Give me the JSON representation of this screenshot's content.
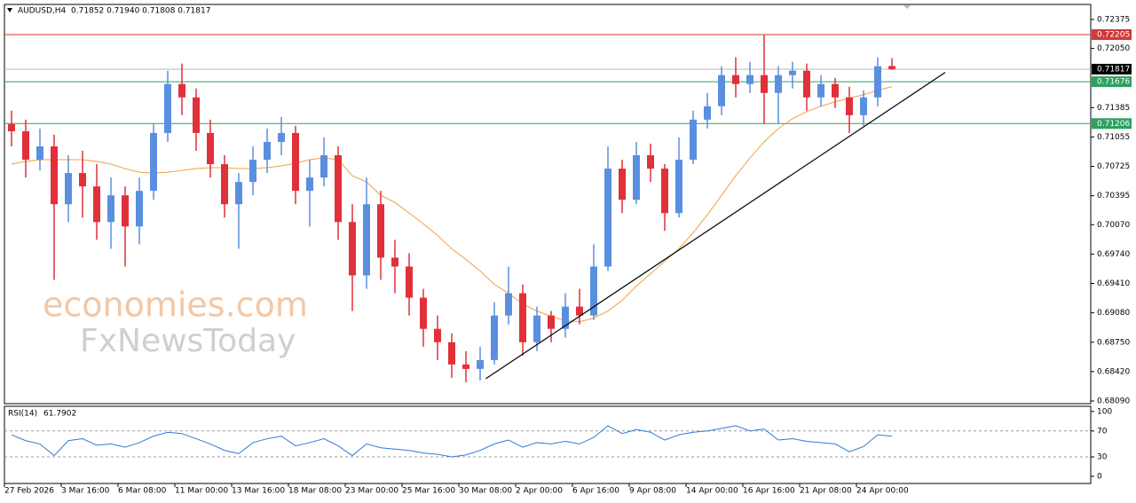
{
  "chart_data": [
    {
      "type": "candlestick",
      "title": "AUDUSD,H4",
      "subtitle": "0.71852 0.71940 0.71808 0.71817",
      "categories": [
        "27 Feb 2026",
        null,
        null,
        null,
        "3 Mar 16:00",
        null,
        null,
        null,
        "6 Mar 08:00",
        null,
        null,
        null,
        "11 Mar 00:00",
        null,
        null,
        null,
        "13 Mar 16:00",
        null,
        null,
        null,
        "18 Mar 08:00",
        null,
        null,
        null,
        "23 Mar 00:00",
        null,
        null,
        null,
        "25 Mar 16:00",
        null,
        null,
        null,
        "30 Mar 08:00",
        null,
        null,
        null,
        "2 Apr 00:00",
        null,
        null,
        null,
        "6 Apr 16:00",
        null,
        null,
        null,
        "9 Apr 08:00",
        null,
        null,
        null,
        "14 Apr 00:00",
        null,
        null,
        null,
        "16 Apr 16:00",
        null,
        null,
        null,
        "21 Apr 08:00",
        null,
        null,
        null,
        "24 Apr 00:00",
        null,
        null
      ],
      "open": [
        0.712,
        0.7112,
        0.708,
        0.7095,
        0.703,
        0.7065,
        0.705,
        0.701,
        0.704,
        0.7005,
        0.7045,
        0.711,
        0.7165,
        0.715,
        0.711,
        0.7075,
        0.703,
        0.7055,
        0.708,
        0.71,
        0.711,
        0.7045,
        0.706,
        0.7085,
        0.701,
        0.695,
        0.703,
        0.697,
        0.696,
        0.6925,
        0.689,
        0.6875,
        0.685,
        0.6845,
        0.6855,
        0.6905,
        0.693,
        0.6875,
        0.6905,
        0.689,
        0.6915,
        0.6905,
        0.696,
        0.707,
        0.7035,
        0.7085,
        0.707,
        0.702,
        0.708,
        0.7125,
        0.714,
        0.7175,
        0.7165,
        0.7175,
        0.7155,
        0.7175,
        0.718,
        0.715,
        0.7165,
        0.715,
        0.713,
        0.715,
        0.71852
      ],
      "high": [
        0.7135,
        0.7125,
        0.7115,
        0.7108,
        0.7085,
        0.709,
        0.7075,
        0.706,
        0.705,
        0.706,
        0.712,
        0.718,
        0.7188,
        0.716,
        0.7125,
        0.7085,
        0.7065,
        0.7095,
        0.7115,
        0.7128,
        0.7118,
        0.708,
        0.7105,
        0.7095,
        0.703,
        0.706,
        0.7045,
        0.699,
        0.6975,
        0.6935,
        0.6905,
        0.6885,
        0.6865,
        0.687,
        0.692,
        0.696,
        0.694,
        0.6915,
        0.691,
        0.693,
        0.6935,
        0.6985,
        0.7095,
        0.708,
        0.71,
        0.7098,
        0.7075,
        0.7105,
        0.7135,
        0.7155,
        0.7185,
        0.7195,
        0.719,
        0.722,
        0.7185,
        0.719,
        0.7188,
        0.7175,
        0.7172,
        0.7162,
        0.7158,
        0.7195,
        0.7194
      ],
      "low": [
        0.7095,
        0.706,
        0.7068,
        0.6945,
        0.701,
        0.7015,
        0.699,
        0.698,
        0.696,
        0.6985,
        0.7035,
        0.71,
        0.713,
        0.709,
        0.706,
        0.7015,
        0.698,
        0.704,
        0.7065,
        0.7085,
        0.703,
        0.7005,
        0.705,
        0.699,
        0.691,
        0.6935,
        0.6945,
        0.693,
        0.6905,
        0.687,
        0.6855,
        0.6835,
        0.683,
        0.6832,
        0.685,
        0.6895,
        0.686,
        0.6865,
        0.6875,
        0.688,
        0.6895,
        0.69,
        0.6955,
        0.702,
        0.703,
        0.7055,
        0.7,
        0.7015,
        0.7075,
        0.7115,
        0.713,
        0.715,
        0.7155,
        0.712,
        0.712,
        0.716,
        0.7135,
        0.714,
        0.7138,
        0.711,
        0.7118,
        0.714,
        0.71808
      ],
      "close": [
        0.7112,
        0.708,
        0.7095,
        0.703,
        0.7065,
        0.705,
        0.701,
        0.704,
        0.7005,
        0.7045,
        0.711,
        0.7165,
        0.715,
        0.711,
        0.7075,
        0.703,
        0.7055,
        0.708,
        0.71,
        0.711,
        0.7045,
        0.706,
        0.7085,
        0.701,
        0.695,
        0.703,
        0.697,
        0.696,
        0.6925,
        0.689,
        0.6875,
        0.685,
        0.6845,
        0.6855,
        0.6905,
        0.693,
        0.6875,
        0.6905,
        0.689,
        0.6915,
        0.6905,
        0.696,
        0.707,
        0.7035,
        0.7085,
        0.707,
        0.702,
        0.708,
        0.7125,
        0.714,
        0.7175,
        0.7165,
        0.7175,
        0.7155,
        0.7175,
        0.718,
        0.715,
        0.7165,
        0.715,
        0.713,
        0.715,
        0.7185,
        0.71817
      ],
      "up_color": "#5a8fe0",
      "down_color": "#e0303a",
      "moving_average": {
        "color": "#f0a040",
        "values": [
          0.7075,
          0.7078,
          0.708,
          0.708,
          0.708,
          0.708,
          0.7078,
          0.7075,
          0.707,
          0.7066,
          0.7065,
          0.7066,
          0.7068,
          0.707,
          0.7071,
          0.7071,
          0.707,
          0.707,
          0.7071,
          0.7073,
          0.7076,
          0.708,
          0.7082,
          0.708,
          0.7062,
          0.7055,
          0.704,
          0.7032,
          0.702,
          0.7008,
          0.6995,
          0.698,
          0.6968,
          0.6955,
          0.694,
          0.693,
          0.6918,
          0.691,
          0.6904,
          0.6899,
          0.6898,
          0.6902,
          0.691,
          0.6922,
          0.6938,
          0.6952,
          0.6966,
          0.698,
          0.6998,
          0.7018,
          0.704,
          0.7062,
          0.7082,
          0.71,
          0.7115,
          0.7126,
          0.7134,
          0.714,
          0.7145,
          0.7149,
          0.7153,
          0.7158,
          0.7162
        ]
      },
      "levels": [
        {
          "value": 0.72205,
          "color": "#d03a3a"
        },
        {
          "value": 0.71676,
          "color": "#2ea060"
        },
        {
          "value": 0.71206,
          "color": "#2ea060"
        },
        {
          "value": 0.71817,
          "color": "#000000"
        }
      ],
      "trendline": {
        "x": [
          33.4,
          65.75
        ],
        "values": [
          0.6834,
          0.7178
        ],
        "color": "#000000"
      },
      "watermark": [
        "economies.com",
        "FxNewsToday"
      ],
      "ylim": [
        0.6806,
        0.72544
      ],
      "yticks": [
        0.72375,
        {
          "value": 0.7205,
          "label": "0.72050"
        },
        0.71385,
        0.71055,
        0.70725,
        0.70395,
        {
          "value": 0.7007,
          "label": "0.70070"
        },
        {
          "value": 0.6974,
          "label": "0.69740"
        },
        {
          "value": 0.6941,
          "label": "0.69410"
        },
        {
          "value": 0.6908,
          "label": "0.69080"
        },
        {
          "value": 0.6875,
          "label": "0.68750"
        },
        {
          "value": 0.6842,
          "label": "0.68420"
        },
        {
          "value": 0.6809,
          "label": "0.68090"
        }
      ]
    },
    {
      "type": "line",
      "title": "RSI(14)",
      "color": "#2f7bd6",
      "values": [
        64,
        55,
        50,
        32,
        55,
        58,
        48,
        50,
        45,
        52,
        62,
        68,
        66,
        58,
        50,
        40,
        35,
        52,
        58,
        62,
        47,
        52,
        58,
        47,
        32,
        50,
        44,
        42,
        40,
        36,
        34,
        30,
        33,
        40,
        50,
        56,
        45,
        52,
        50,
        54,
        50,
        60,
        78,
        66,
        72,
        68,
        56,
        64,
        68,
        70,
        74,
        78,
        70,
        73,
        56,
        58,
        54,
        52,
        50,
        38,
        46,
        64,
        61.7902
      ],
      "ylim": [
        -11,
        108
      ],
      "yticks": [
        100,
        70,
        30,
        0
      ],
      "levels": [
        70,
        30
      ]
    }
  ]
}
